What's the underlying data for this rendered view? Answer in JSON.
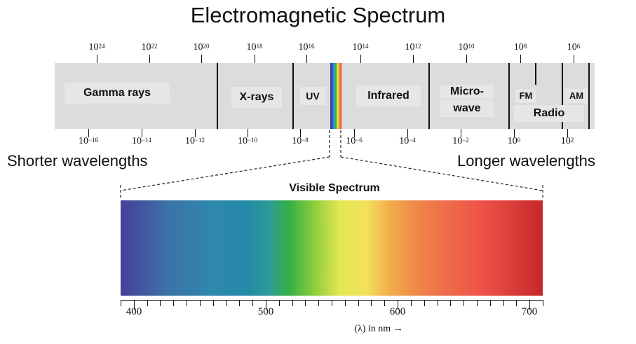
{
  "title": "Electromagnetic Spectrum",
  "bands": {
    "gamma": "Gamma rays",
    "xrays": "X-rays",
    "uv": "UV",
    "infrared": "Infrared",
    "microwave_line1": "Micro-",
    "microwave_line2": "wave",
    "fm": "FM",
    "am": "AM",
    "radio": "Radio"
  },
  "frequency_ticks": [
    {
      "base": "10",
      "exp": "24"
    },
    {
      "base": "10",
      "exp": "22"
    },
    {
      "base": "10",
      "exp": "20"
    },
    {
      "base": "10",
      "exp": "18"
    },
    {
      "base": "10",
      "exp": "16"
    },
    {
      "base": "10",
      "exp": "14"
    },
    {
      "base": "10",
      "exp": "12"
    },
    {
      "base": "10",
      "exp": "10"
    },
    {
      "base": "10",
      "exp": "8"
    },
    {
      "base": "10",
      "exp": "6"
    }
  ],
  "wavelength_ticks": [
    {
      "base": "10",
      "exp": "−16"
    },
    {
      "base": "10",
      "exp": "−14"
    },
    {
      "base": "10",
      "exp": "−12"
    },
    {
      "base": "10",
      "exp": "−10"
    },
    {
      "base": "10",
      "exp": "−8"
    },
    {
      "base": "10",
      "exp": "−6"
    },
    {
      "base": "10",
      "exp": "−4"
    },
    {
      "base": "10",
      "exp": "−2"
    },
    {
      "base": "10",
      "exp": "0"
    },
    {
      "base": "10",
      "exp": "2"
    }
  ],
  "shorter_label": "Shorter wavelengths",
  "longer_label": "Longer wavelengths",
  "visible": {
    "title": "Visible Spectrum",
    "axis_labels": [
      "400",
      "500",
      "600",
      "700"
    ],
    "axis_min_nm": 390,
    "axis_max_nm": 710,
    "unit": "(λ) in nm →"
  }
}
